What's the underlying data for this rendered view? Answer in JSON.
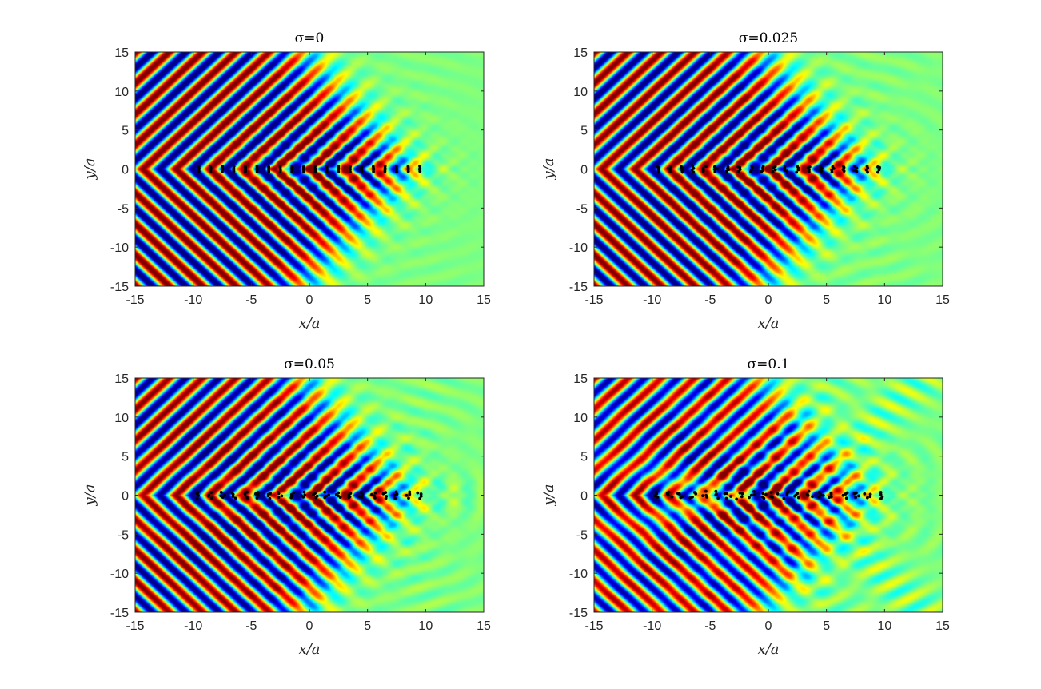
{
  "chart_data": [
    {
      "type": "heatmap",
      "panel": "top-left",
      "title": "σ=0",
      "xlabel": "x/a",
      "ylabel": "y/a",
      "xlim": [
        -15,
        15
      ],
      "ylim": [
        -15,
        15
      ],
      "x_ticks": [
        -15,
        -10,
        -5,
        0,
        5,
        10,
        15
      ],
      "y_ticks": [
        -15,
        -10,
        -5,
        0,
        5,
        10,
        15
      ],
      "sigma": 0,
      "colormap": "jet",
      "scatterers": {
        "marker_color": "#000000",
        "y": 0,
        "x": [
          -9.5,
          -8.5,
          -7.5,
          -6.5,
          -5.5,
          -4.5,
          -3.5,
          -2.5,
          -1.5,
          -0.5,
          0.5,
          1.5,
          2.5,
          3.5,
          4.5,
          5.5,
          6.5,
          7.5,
          8.5,
          9.5
        ]
      }
    },
    {
      "type": "heatmap",
      "panel": "top-right",
      "title": "σ=0.025",
      "xlabel": "x/a",
      "ylabel": "y/a",
      "xlim": [
        -15,
        15
      ],
      "ylim": [
        -15,
        15
      ],
      "x_ticks": [
        -15,
        -10,
        -5,
        0,
        5,
        10,
        15
      ],
      "y_ticks": [
        -15,
        -10,
        -5,
        0,
        5,
        10,
        15
      ],
      "sigma": 0.025,
      "colormap": "jet",
      "scatterers": {
        "marker_color": "#000000",
        "y": 0,
        "x": [
          -9.5,
          -8.5,
          -7.5,
          -6.5,
          -5.5,
          -4.5,
          -3.5,
          -2.5,
          -1.5,
          -0.5,
          0.5,
          1.5,
          2.5,
          3.5,
          4.5,
          5.5,
          6.5,
          7.5,
          8.5,
          9.5
        ]
      }
    },
    {
      "type": "heatmap",
      "panel": "bottom-left",
      "title": "σ=0.05",
      "xlabel": "x/a",
      "ylabel": "y/a",
      "xlim": [
        -15,
        15
      ],
      "ylim": [
        -15,
        15
      ],
      "x_ticks": [
        -15,
        -10,
        -5,
        0,
        5,
        10,
        15
      ],
      "y_ticks": [
        -15,
        -10,
        -5,
        0,
        5,
        10,
        15
      ],
      "sigma": 0.05,
      "colormap": "jet",
      "scatterers": {
        "marker_color": "#000000",
        "y": 0,
        "x": [
          -9.5,
          -8.5,
          -7.5,
          -6.5,
          -5.5,
          -4.5,
          -3.5,
          -2.5,
          -1.5,
          -0.5,
          0.5,
          1.5,
          2.5,
          3.5,
          4.5,
          5.5,
          6.5,
          7.5,
          8.5,
          9.5
        ]
      }
    },
    {
      "type": "heatmap",
      "panel": "bottom-right",
      "title": "σ=0.1",
      "xlabel": "x/a",
      "ylabel": "y/a",
      "xlim": [
        -15,
        15
      ],
      "ylim": [
        -15,
        15
      ],
      "x_ticks": [
        -15,
        -10,
        -5,
        0,
        5,
        10,
        15
      ],
      "y_ticks": [
        -15,
        -10,
        -5,
        0,
        5,
        10,
        15
      ],
      "sigma": 0.1,
      "colormap": "jet",
      "scatterers": {
        "marker_color": "#000000",
        "y": 0,
        "x": [
          -9.5,
          -8.5,
          -7.5,
          -6.5,
          -5.5,
          -4.5,
          -3.5,
          -2.5,
          -1.5,
          -0.5,
          0.5,
          1.5,
          2.5,
          3.5,
          4.5,
          5.5,
          6.5,
          7.5,
          8.5,
          9.5
        ]
      }
    }
  ]
}
